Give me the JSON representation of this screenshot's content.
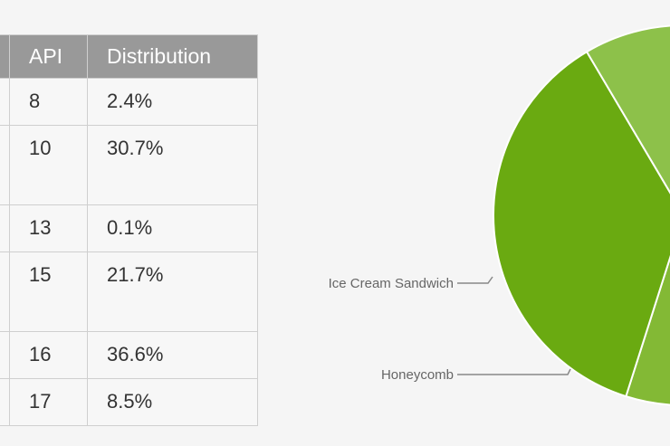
{
  "table": {
    "headers": [
      "",
      "API",
      "Distribution"
    ],
    "rows": [
      {
        "api": "8",
        "dist": "2.4%",
        "tall": false
      },
      {
        "api": "10",
        "dist": "30.7%",
        "tall": true
      },
      {
        "api": "13",
        "dist": "0.1%",
        "tall": false
      },
      {
        "api": "15",
        "dist": "21.7%",
        "tall": true
      },
      {
        "api": "16",
        "dist": "36.6%",
        "tall": false
      },
      {
        "api": "17",
        "dist": "8.5%",
        "tall": false
      }
    ]
  },
  "chart_data": {
    "type": "pie",
    "title": "",
    "slices": [
      {
        "label": "",
        "value": 2.4,
        "color": "#cfe7a4"
      },
      {
        "label": "",
        "value": 30.7,
        "color": "#a9d36e"
      },
      {
        "label": "Honeycomb",
        "value": 0.1,
        "color": "#8dc14a"
      },
      {
        "label": "Ice Cream Sandwich",
        "value": 21.7,
        "color": "#83b935"
      },
      {
        "label": "",
        "value": 36.6,
        "color": "#6aaa11"
      },
      {
        "label": "",
        "value": 8.5,
        "color": "#8dc14a"
      }
    ],
    "visible_labels": [
      "Ice Cream Sandwich",
      "Honeycomb"
    ]
  }
}
